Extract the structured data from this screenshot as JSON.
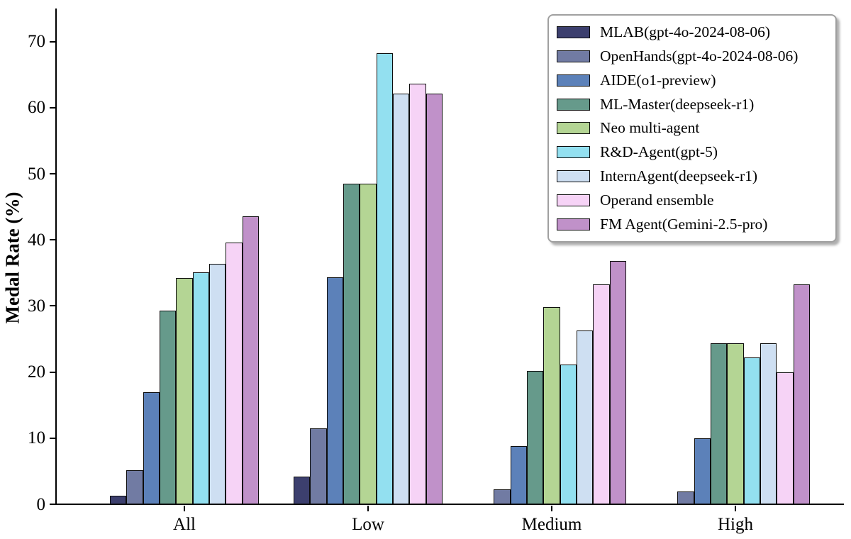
{
  "chart_data": {
    "type": "bar",
    "title": "",
    "xlabel": "",
    "ylabel": "Medal Rate (%)",
    "ylim": [
      0,
      75
    ],
    "yticks": [
      0,
      10,
      20,
      30,
      40,
      50,
      60,
      70
    ],
    "grid": false,
    "legend_position": "upper right",
    "bar_edge_color": "#0d0d0d",
    "categories": [
      "All",
      "Low",
      "Medium",
      "High"
    ],
    "series": [
      {
        "name": "MLAB(gpt-4o-2024-08-06)",
        "color": "#3c3f6e",
        "values": [
          1.3,
          4.2,
          0,
          0
        ]
      },
      {
        "name": "OpenHands(gpt-4o-2024-08-06)",
        "color": "#717ba3",
        "values": [
          5.1,
          11.5,
          2.2,
          1.9
        ]
      },
      {
        "name": "AIDE(o1-preview)",
        "color": "#5c81b9",
        "values": [
          16.9,
          34.3,
          8.8,
          10.0
        ]
      },
      {
        "name": "ML-Master(deepseek-r1)",
        "color": "#669a8b",
        "values": [
          29.3,
          48.5,
          20.2,
          24.4
        ]
      },
      {
        "name": "Neo multi-agent",
        "color": "#b4d594",
        "values": [
          34.2,
          48.5,
          29.8,
          24.4
        ]
      },
      {
        "name": "R&D-Agent(gpt-5)",
        "color": "#93e0f0",
        "values": [
          35.1,
          68.2,
          21.1,
          22.2
        ]
      },
      {
        "name": "InternAgent(deepseek-r1)",
        "color": "#cedff2",
        "values": [
          36.4,
          62.1,
          26.3,
          24.4
        ]
      },
      {
        "name": "Operand ensemble",
        "color": "#f6d3f6",
        "values": [
          39.6,
          63.6,
          33.3,
          20.0
        ]
      },
      {
        "name": "FM Agent(Gemini-2.5-pro)",
        "color": "#c091c9",
        "values": [
          43.6,
          62.1,
          36.8,
          33.3
        ]
      }
    ]
  }
}
